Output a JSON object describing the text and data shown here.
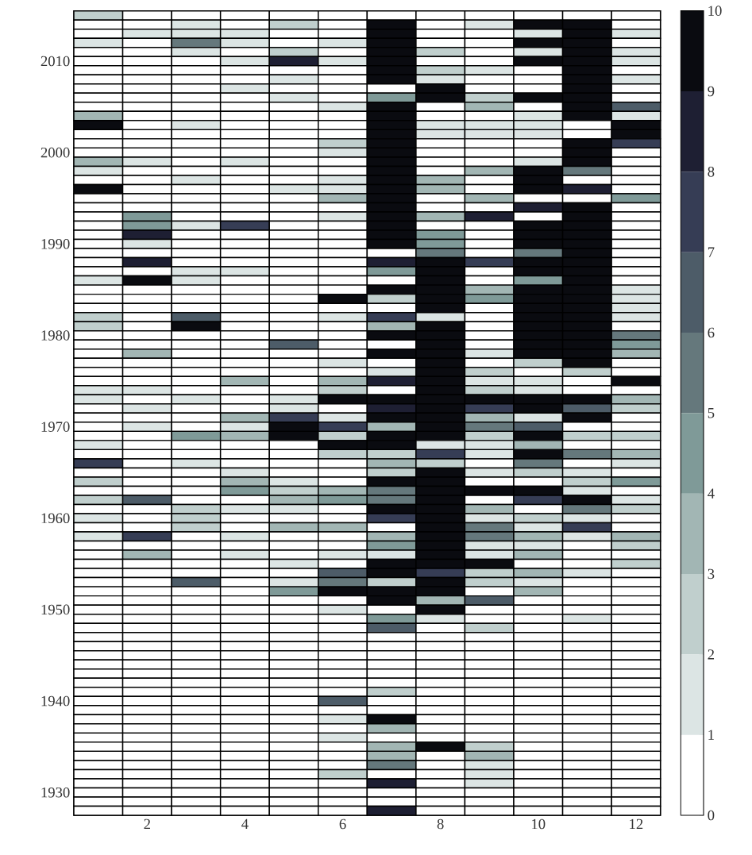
{
  "chart_data": {
    "type": "heatmap",
    "categories": [
      null,
      "2",
      null,
      "4",
      null,
      "6",
      null,
      "8",
      null,
      "10",
      null,
      "12"
    ],
    "y_categories": [
      null,
      null,
      null,
      null,
      null,
      "2010",
      null,
      null,
      null,
      null,
      null,
      null,
      null,
      null,
      null,
      "2000",
      null,
      null,
      null,
      null,
      null,
      null,
      null,
      null,
      null,
      "1990",
      null,
      null,
      null,
      null,
      null,
      null,
      null,
      null,
      null,
      "1980",
      null,
      null,
      null,
      null,
      null,
      null,
      null,
      null,
      null,
      "1970",
      null,
      null,
      null,
      null,
      null,
      null,
      null,
      null,
      null,
      "1960",
      null,
      null,
      null,
      null,
      null,
      null,
      null,
      null,
      null,
      "1950",
      null,
      null,
      null,
      null,
      null,
      null,
      null,
      null,
      null,
      "1940",
      null,
      null,
      null,
      null,
      null,
      null,
      null,
      null,
      null,
      "1930",
      null,
      null
    ],
    "cells": [
      [
        2.5,
        0,
        0,
        0,
        0,
        0,
        0,
        0,
        0,
        0,
        0,
        0
      ],
      [
        0,
        0,
        1.5,
        0,
        2.5,
        0,
        9.5,
        0,
        1.5,
        9.5,
        9.5,
        0
      ],
      [
        0,
        1.5,
        1.5,
        1.5,
        0,
        0,
        9.5,
        0,
        0,
        1.5,
        9.5,
        1.5
      ],
      [
        1.5,
        0,
        5.5,
        1.5,
        0,
        1.5,
        9.5,
        0,
        0,
        9.5,
        9.5,
        0
      ],
      [
        0,
        0,
        1.5,
        0,
        2.5,
        0,
        9.5,
        2.5,
        0,
        1.5,
        9.5,
        1.5
      ],
      [
        0,
        0,
        0,
        1.5,
        8.5,
        1.5,
        9.5,
        0,
        0,
        9.5,
        9.5,
        1.5
      ],
      [
        0,
        0,
        0,
        0,
        0,
        0,
        9.5,
        2.5,
        1.5,
        0,
        9.5,
        0
      ],
      [
        0,
        0,
        0,
        0,
        1.5,
        0,
        9.5,
        1.5,
        0,
        0,
        9.5,
        1.5
      ],
      [
        0,
        0,
        0,
        1.5,
        0,
        0,
        0,
        9.5,
        0,
        0,
        9.5,
        0
      ],
      [
        0,
        0,
        0,
        0,
        1.5,
        0,
        4.5,
        9.5,
        2.5,
        9.5,
        9.5,
        0
      ],
      [
        0,
        0,
        0,
        0,
        0,
        1.5,
        9.5,
        0,
        3.5,
        0,
        9.5,
        6.5
      ],
      [
        3.5,
        0,
        0,
        0,
        0,
        0,
        9.5,
        0,
        0,
        1.5,
        9.5,
        1.5
      ],
      [
        9.5,
        0,
        1.5,
        0,
        0,
        0,
        9.5,
        1.5,
        1.5,
        1.5,
        0,
        9.5
      ],
      [
        0,
        0,
        0,
        0,
        0,
        0,
        9.5,
        1.5,
        1.5,
        1.5,
        0,
        9.5
      ],
      [
        0,
        0,
        0,
        0,
        0,
        2.5,
        9.5,
        0,
        0,
        0,
        9.5,
        7.5
      ],
      [
        0,
        0,
        0,
        0,
        0,
        1.5,
        9.5,
        0,
        0,
        0,
        9.5,
        0
      ],
      [
        3.5,
        1.5,
        0,
        1.5,
        0,
        0,
        9.5,
        0,
        0,
        1.5,
        9.5,
        0
      ],
      [
        1.5,
        0,
        0,
        0,
        0,
        0,
        9.5,
        0,
        3.5,
        9.5,
        5.5,
        0
      ],
      [
        0,
        0,
        1.5,
        0,
        0,
        1.5,
        9.5,
        3.5,
        0,
        9.5,
        0,
        0
      ],
      [
        9.5,
        0,
        0,
        0,
        1.5,
        1.5,
        9.5,
        3.5,
        0,
        9.5,
        8.5,
        0
      ],
      [
        0,
        0,
        0,
        0,
        0,
        3.5,
        9.5,
        0,
        3.5,
        0,
        0,
        4.5
      ],
      [
        0,
        0,
        0,
        0,
        0,
        0,
        9.5,
        0,
        0,
        8.5,
        9.5,
        0
      ],
      [
        0,
        4.5,
        0,
        0,
        0,
        1.5,
        9.5,
        3.5,
        8.5,
        0,
        9.5,
        0
      ],
      [
        0,
        4.5,
        1.5,
        7.5,
        0,
        0,
        9.5,
        0,
        0,
        9.5,
        9.5,
        0
      ],
      [
        0,
        8.5,
        0,
        0,
        0,
        0,
        9.5,
        4.5,
        0,
        9.5,
        9.5,
        0
      ],
      [
        0,
        1.5,
        0,
        0,
        0,
        0,
        9.5,
        4.5,
        0,
        9.5,
        9.5,
        0
      ],
      [
        0,
        0,
        0,
        0,
        0,
        0,
        0,
        5.5,
        0,
        5.5,
        9.5,
        0
      ],
      [
        0,
        8.5,
        0,
        0,
        0,
        0,
        8.5,
        9.5,
        7.5,
        9.5,
        9.5,
        0
      ],
      [
        0,
        0,
        1.5,
        1.5,
        0,
        0,
        4.5,
        9.5,
        0,
        9.5,
        9.5,
        0
      ],
      [
        1.5,
        9.5,
        1.5,
        0,
        0,
        0,
        0,
        9.5,
        0,
        4.5,
        9.5,
        0
      ],
      [
        0,
        0,
        0,
        0,
        0,
        0,
        9.5,
        9.5,
        3.5,
        9.5,
        9.5,
        1.5
      ],
      [
        0,
        0,
        0,
        0,
        0,
        9.5,
        2.5,
        9.5,
        4.5,
        9.5,
        9.5,
        1.5
      ],
      [
        0,
        0,
        0,
        0,
        0,
        0,
        0,
        9.5,
        0,
        9.5,
        9.5,
        1.5
      ],
      [
        2.5,
        0,
        6.5,
        0,
        0,
        1.5,
        7.5,
        1.5,
        0,
        9.5,
        9.5,
        1.5
      ],
      [
        2.5,
        0,
        9.5,
        0,
        0,
        0,
        3.5,
        9.5,
        0,
        9.5,
        9.5,
        0
      ],
      [
        0,
        0,
        0,
        0,
        0,
        0,
        9.5,
        9.5,
        0,
        9.5,
        9.5,
        5.5
      ],
      [
        0,
        0,
        0,
        0,
        6.5,
        0,
        0,
        9.5,
        0,
        9.5,
        9.5,
        4.5
      ],
      [
        0,
        3.5,
        0,
        0,
        0,
        0,
        9.5,
        9.5,
        1.5,
        9.5,
        9.5,
        3.5
      ],
      [
        0,
        0,
        0,
        0,
        0,
        1.5,
        0,
        9.5,
        0,
        2.5,
        9.5,
        0
      ],
      [
        0,
        0,
        0,
        0,
        0,
        0,
        1.5,
        9.5,
        2.5,
        0,
        2.5,
        0
      ],
      [
        0,
        0,
        0,
        3.5,
        0,
        3.5,
        8.5,
        9.5,
        1.5,
        1.5,
        0,
        9.5
      ],
      [
        1.5,
        1.5,
        0,
        0,
        0,
        2.5,
        0,
        9.5,
        2.5,
        1.5,
        0,
        0
      ],
      [
        1.5,
        0,
        1.5,
        0,
        1.5,
        9.5,
        9.5,
        9.5,
        9.5,
        9.5,
        9.5,
        3.5
      ],
      [
        0,
        1.5,
        0,
        0,
        1.5,
        0,
        8.5,
        9.5,
        7.5,
        9.5,
        6.5,
        2.5
      ],
      [
        0,
        0,
        0,
        3.5,
        7.5,
        1.5,
        9.5,
        9.5,
        3.5,
        1.5,
        9.5,
        0
      ],
      [
        0,
        1.5,
        0,
        1.5,
        9.5,
        7.5,
        3.5,
        9.5,
        5.5,
        6.5,
        0,
        0
      ],
      [
        0,
        0,
        4.5,
        3.5,
        9.5,
        2.5,
        9.5,
        9.5,
        2.5,
        9.5,
        2.5,
        2.5
      ],
      [
        1.5,
        0,
        0,
        0,
        0,
        9.5,
        9.5,
        1.5,
        1.5,
        3.5,
        0,
        0
      ],
      [
        0,
        0,
        0,
        0,
        0,
        2.5,
        2.5,
        7.5,
        1.5,
        9.5,
        5.5,
        3.5
      ],
      [
        7.5,
        0,
        1.5,
        0,
        0,
        0,
        3.5,
        2.5,
        0,
        5.5,
        0,
        1.5
      ],
      [
        0,
        0,
        0,
        1.5,
        0,
        0,
        2.5,
        9.5,
        1.5,
        2.5,
        1.5,
        0
      ],
      [
        2.5,
        0,
        0,
        3.5,
        1.5,
        0,
        9.5,
        9.5,
        0,
        0,
        2.5,
        4.5
      ],
      [
        0,
        0,
        0,
        4.5,
        2.5,
        3.5,
        5.5,
        9.5,
        9.5,
        9.5,
        1.5,
        0
      ],
      [
        2.5,
        6.5,
        0,
        0,
        3.5,
        4.5,
        5.5,
        9.5,
        0,
        7.5,
        9.5,
        1.5
      ],
      [
        0,
        0,
        2.5,
        1.5,
        1.5,
        0,
        9.5,
        9.5,
        3.5,
        0,
        5.5,
        2.5
      ],
      [
        1.5,
        0,
        2.5,
        0,
        0,
        0,
        7.5,
        9.5,
        1.5,
        2.5,
        1.5,
        0
      ],
      [
        0,
        0,
        2.5,
        0,
        3.5,
        3.5,
        0,
        9.5,
        5.5,
        1.5,
        7.5,
        0
      ],
      [
        1.5,
        7.5,
        0,
        1.5,
        0,
        0,
        3.5,
        9.5,
        5.5,
        3.5,
        1.5,
        3.5
      ],
      [
        0,
        0,
        0,
        0,
        0,
        0,
        4.5,
        9.5,
        1.5,
        1.5,
        0,
        2.5
      ],
      [
        0,
        3.5,
        0,
        1.5,
        0,
        1.5,
        1.5,
        9.5,
        1.5,
        3.5,
        0,
        0
      ],
      [
        0,
        0,
        0,
        0,
        1.5,
        0,
        9.5,
        9.5,
        9.5,
        0,
        0,
        2.5
      ],
      [
        0,
        0,
        0,
        0,
        0,
        6.5,
        9.5,
        7.5,
        2.5,
        3.5,
        1.5,
        0
      ],
      [
        0,
        0,
        6.5,
        0,
        1.5,
        5.5,
        2.5,
        9.5,
        2.5,
        1.5,
        0,
        0
      ],
      [
        0,
        0,
        0,
        0,
        4.5,
        9.5,
        9.5,
        9.5,
        0,
        3.5,
        0,
        0
      ],
      [
        0,
        0,
        0,
        0,
        0,
        0,
        9.5,
        3.5,
        6.5,
        0,
        0,
        0
      ],
      [
        0,
        0,
        0,
        0,
        0,
        1.5,
        0,
        9.5,
        0,
        0,
        0,
        0
      ],
      [
        0,
        0,
        0,
        0,
        0,
        0,
        4.5,
        1.5,
        0,
        0,
        1.5,
        0
      ],
      [
        0,
        0,
        0,
        0,
        0,
        0,
        6.5,
        0,
        2.5,
        0,
        0,
        0
      ],
      [
        0,
        0,
        0,
        0,
        0,
        0,
        0,
        0,
        0,
        0,
        0,
        0
      ],
      [
        0,
        0,
        0,
        0,
        0,
        0,
        0,
        0,
        0,
        0,
        0,
        0
      ],
      [
        0,
        0,
        0,
        0,
        0,
        0,
        0,
        0,
        0,
        0,
        0,
        0
      ],
      [
        0,
        0,
        0,
        0,
        0,
        0,
        0,
        0,
        0,
        0,
        0,
        0
      ],
      [
        0,
        0,
        0,
        0,
        0,
        0,
        0,
        0,
        0,
        0,
        0,
        0
      ],
      [
        0,
        0,
        0,
        0,
        0,
        0,
        0,
        0,
        0,
        0,
        0,
        0
      ],
      [
        0,
        0,
        0,
        0,
        0,
        0,
        2.5,
        0,
        0,
        0,
        0,
        0
      ],
      [
        0,
        0,
        0,
        0,
        0,
        6.5,
        0,
        0,
        0,
        0,
        0,
        0
      ],
      [
        0,
        0,
        0,
        0,
        0,
        0,
        0,
        0,
        0,
        0,
        0,
        0
      ],
      [
        0,
        0,
        0,
        0,
        0,
        1.5,
        9.5,
        0,
        0,
        0,
        0,
        0
      ],
      [
        0,
        0,
        0,
        0,
        0,
        0,
        3.5,
        0,
        0,
        0,
        0,
        0
      ],
      [
        0,
        0,
        0,
        0,
        0,
        1.5,
        0,
        0,
        0,
        0,
        0,
        0
      ],
      [
        0,
        0,
        0,
        0,
        0,
        0,
        3.5,
        9.5,
        2.5,
        0,
        0,
        0
      ],
      [
        0,
        0,
        0,
        0,
        0,
        0,
        3.5,
        0,
        3.5,
        0,
        0,
        0
      ],
      [
        0,
        0,
        0,
        0,
        0,
        0,
        5.5,
        0,
        1.5,
        0,
        0,
        0
      ],
      [
        0,
        0,
        0,
        0,
        0,
        2.5,
        0,
        0,
        1.5,
        0,
        0,
        0
      ],
      [
        0,
        0,
        0,
        0,
        0,
        0,
        8.5,
        0,
        1.5,
        0,
        0,
        0
      ],
      [
        0,
        0,
        0,
        0,
        0,
        0,
        0,
        0,
        0,
        0,
        0,
        0
      ],
      [
        0,
        0,
        0,
        0,
        0,
        0,
        0,
        0,
        0,
        0,
        0,
        0
      ],
      [
        0,
        0,
        0,
        0,
        0,
        0,
        8.5,
        0,
        0,
        0,
        0,
        0
      ]
    ],
    "clim": [
      0,
      10
    ],
    "cticks": [
      0,
      1,
      2,
      3,
      4,
      5,
      6,
      7,
      8,
      9,
      10
    ]
  }
}
